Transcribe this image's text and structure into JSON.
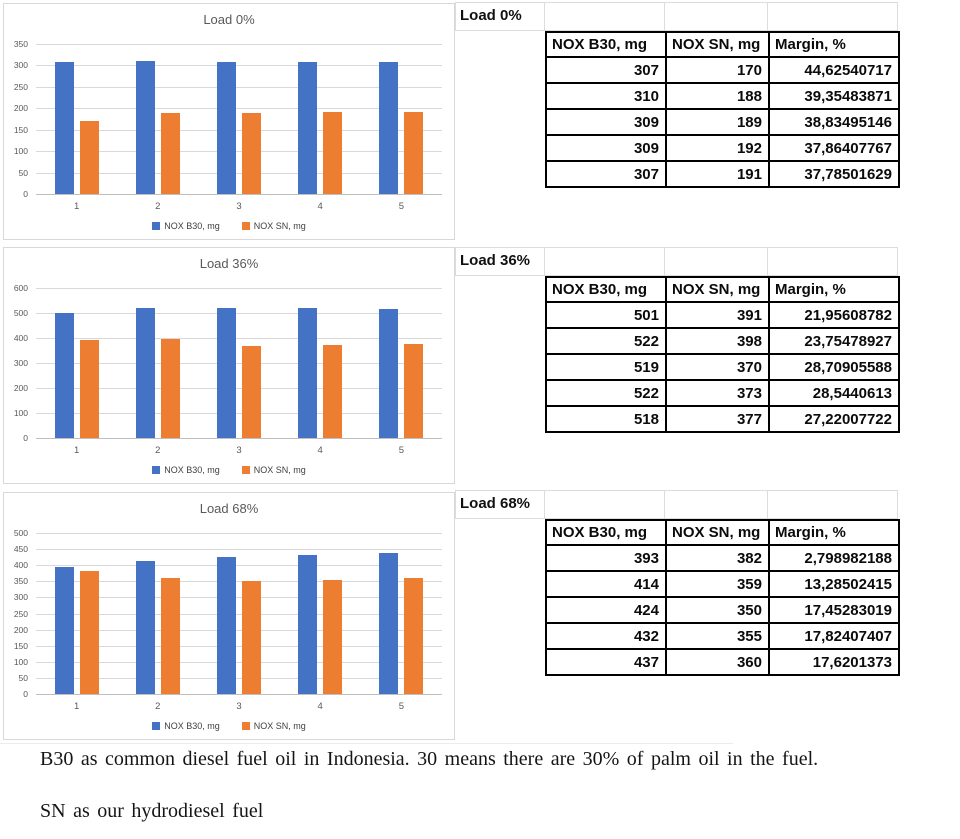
{
  "colors": {
    "b30_blue": "#4472C4",
    "sn_orange": "#ED7D31",
    "grid_light": "#D9D9D9",
    "axis_text": "#595959",
    "table_border": "#000000"
  },
  "tables": [
    {
      "label": "Load 0%",
      "headers": [
        "NOX B30, mg",
        "NOX SN, mg",
        "Margin, %"
      ],
      "rows": [
        [
          "307",
          "170",
          "44,62540717"
        ],
        [
          "310",
          "188",
          "39,35483871"
        ],
        [
          "309",
          "189",
          "38,83495146"
        ],
        [
          "309",
          "192",
          "37,86407767"
        ],
        [
          "307",
          "191",
          "37,78501629"
        ]
      ]
    },
    {
      "label": "Load 36%",
      "headers": [
        "NOX B30, mg",
        "NOX SN, mg",
        "Margin, %"
      ],
      "rows": [
        [
          "501",
          "391",
          "21,95608782"
        ],
        [
          "522",
          "398",
          "23,75478927"
        ],
        [
          "519",
          "370",
          "28,70905588"
        ],
        [
          "522",
          "373",
          "28,5440613"
        ],
        [
          "518",
          "377",
          "27,22007722"
        ]
      ]
    },
    {
      "label": "Load 68%",
      "headers": [
        "NOX B30, mg",
        "NOX SN, mg",
        "Margin, %"
      ],
      "rows": [
        [
          "393",
          "382",
          "2,798982188"
        ],
        [
          "414",
          "359",
          "13,28502415"
        ],
        [
          "424",
          "350",
          "17,45283019"
        ],
        [
          "432",
          "355",
          "17,82407407"
        ],
        [
          "437",
          "360",
          "17,6201373"
        ]
      ]
    }
  ],
  "chart_data": [
    {
      "type": "bar",
      "title": "Load 0%",
      "categories": [
        "1",
        "2",
        "3",
        "4",
        "5"
      ],
      "series": [
        {
          "name": "NOX B30, mg",
          "color": "#4472C4",
          "values": [
            307,
            310,
            309,
            309,
            307
          ]
        },
        {
          "name": "NOX SN, mg",
          "color": "#ED7D31",
          "values": [
            170,
            188,
            189,
            192,
            191
          ]
        }
      ],
      "xlabel": "",
      "ylabel": "",
      "ylim": [
        0,
        350
      ],
      "ytick": 50,
      "grid": true,
      "legend_position": "bottom"
    },
    {
      "type": "bar",
      "title": "Load 36%",
      "categories": [
        "1",
        "2",
        "3",
        "4",
        "5"
      ],
      "series": [
        {
          "name": "NOX B30, mg",
          "color": "#4472C4",
          "values": [
            501,
            522,
            519,
            522,
            518
          ]
        },
        {
          "name": "NOX SN, mg",
          "color": "#ED7D31",
          "values": [
            391,
            398,
            370,
            373,
            377
          ]
        }
      ],
      "xlabel": "",
      "ylabel": "",
      "ylim": [
        0,
        600
      ],
      "ytick": 100,
      "grid": true,
      "legend_position": "bottom"
    },
    {
      "type": "bar",
      "title": "Load 68%",
      "categories": [
        "1",
        "2",
        "3",
        "4",
        "5"
      ],
      "series": [
        {
          "name": "NOX B30, mg",
          "color": "#4472C4",
          "values": [
            393,
            414,
            424,
            432,
            437
          ]
        },
        {
          "name": "NOX SN, mg",
          "color": "#ED7D31",
          "values": [
            382,
            359,
            350,
            355,
            360
          ]
        }
      ],
      "xlabel": "",
      "ylabel": "",
      "ylim": [
        0,
        500
      ],
      "ytick": 50,
      "grid": true,
      "legend_position": "bottom"
    }
  ],
  "notes": {
    "line1": "B30 as common diesel fuel oil in Indonesia. 30 means there are 30% of palm oil in the fuel.",
    "line2": "SN as our hydrodiesel fuel"
  }
}
